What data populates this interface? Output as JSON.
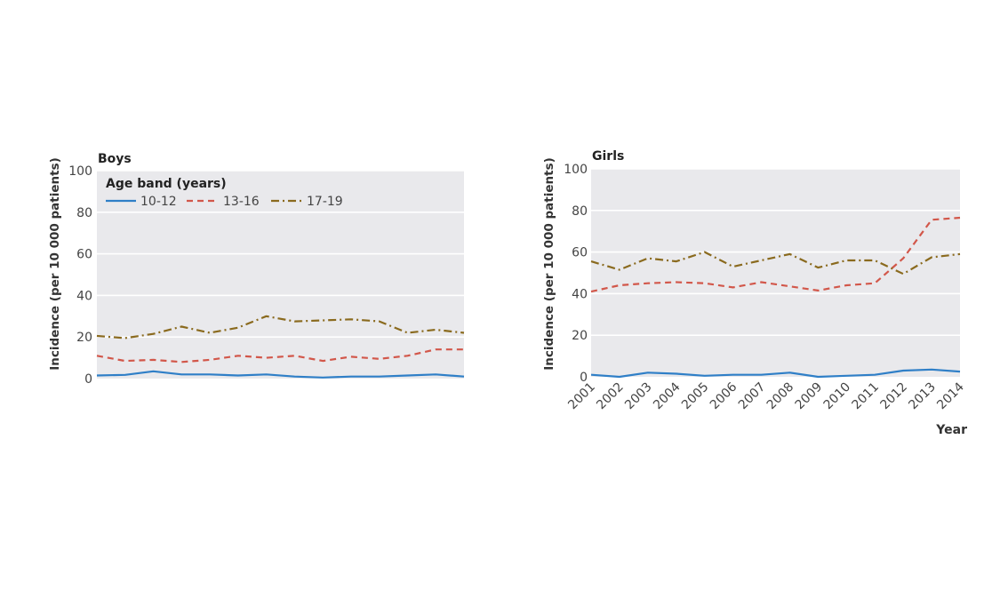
{
  "chart_data": [
    {
      "type": "line",
      "title": "Boys",
      "xlabel": "",
      "ylabel": "Incidence (per 10 000 patients)",
      "ylim": [
        0,
        100
      ],
      "yticks": [
        0,
        20,
        40,
        60,
        80,
        100
      ],
      "x": [
        2001,
        2002,
        2003,
        2004,
        2005,
        2006,
        2007,
        2008,
        2009,
        2010,
        2011,
        2012,
        2013,
        2014
      ],
      "xtick_labels_shown": false,
      "grid": "horizontal",
      "legend": {
        "title": "Age band (years)",
        "placement": "top-left"
      },
      "series": [
        {
          "name": "10-12",
          "color": "#2f7fc7",
          "dash": "solid",
          "values": [
            1.5,
            1.8,
            3.5,
            2.0,
            2.0,
            1.5,
            2.0,
            1.0,
            0.5,
            1.0,
            1.0,
            1.5,
            2.0,
            1.0
          ]
        },
        {
          "name": "13-16",
          "color": "#d2574a",
          "dash": "dashed",
          "values": [
            11.0,
            8.5,
            9.0,
            8.0,
            9.0,
            11.0,
            10.0,
            11.0,
            8.5,
            10.5,
            9.5,
            11.0,
            14.0,
            14.0
          ]
        },
        {
          "name": "17-19",
          "color": "#8a6a1e",
          "dash": "dashdot",
          "values": [
            20.5,
            19.5,
            21.5,
            25.0,
            22.0,
            24.5,
            30.0,
            27.5,
            28.0,
            28.5,
            27.5,
            22.0,
            23.5,
            22.0
          ]
        }
      ]
    },
    {
      "type": "line",
      "title": "Girls",
      "xlabel": "Year",
      "ylabel": "Incidence (per 10 000 patients)",
      "ylim": [
        0,
        100
      ],
      "yticks": [
        0,
        20,
        40,
        60,
        80,
        100
      ],
      "x": [
        2001,
        2002,
        2003,
        2004,
        2005,
        2006,
        2007,
        2008,
        2009,
        2010,
        2011,
        2012,
        2013,
        2014
      ],
      "xtick_labels_shown": true,
      "grid": "horizontal",
      "series": [
        {
          "name": "10-12",
          "color": "#2f7fc7",
          "dash": "solid",
          "values": [
            1.0,
            0.0,
            2.0,
            1.5,
            0.5,
            1.0,
            1.0,
            2.0,
            0.0,
            0.5,
            1.0,
            3.0,
            3.5,
            2.5
          ]
        },
        {
          "name": "13-16",
          "color": "#d2574a",
          "dash": "dashed",
          "values": [
            41.0,
            44.0,
            45.0,
            45.5,
            45.0,
            43.0,
            45.5,
            43.5,
            41.5,
            44.0,
            45.0,
            57.0,
            75.5,
            76.5
          ]
        },
        {
          "name": "17-19",
          "color": "#8a6a1e",
          "dash": "dashdot",
          "values": [
            55.5,
            51.5,
            57.0,
            55.5,
            60.0,
            53.0,
            56.0,
            59.0,
            52.5,
            56.0,
            56.0,
            49.5,
            57.5,
            59.0
          ]
        }
      ]
    }
  ]
}
